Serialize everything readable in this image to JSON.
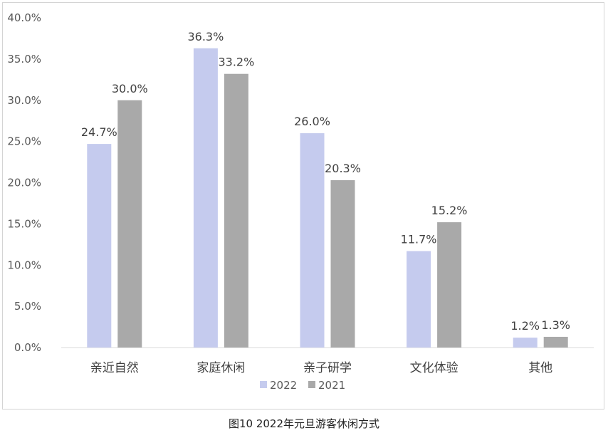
{
  "caption": "图10 2022年元旦游客休闲方式",
  "chart_data": {
    "type": "bar",
    "title": "",
    "xlabel": "",
    "ylabel": "",
    "categories": [
      "亲近自然",
      "家庭休闲",
      "亲子研学",
      "文化体验",
      "其他"
    ],
    "series": [
      {
        "name": "2022",
        "values": [
          24.7,
          36.3,
          26.0,
          11.7,
          1.2
        ],
        "labels": [
          "24.7%",
          "36.3%",
          "26.0%",
          "11.7%",
          "1.2%"
        ],
        "color": "#c5cbee"
      },
      {
        "name": "2021",
        "values": [
          30.0,
          33.2,
          20.3,
          15.2,
          1.3
        ],
        "labels": [
          "30.0%",
          "33.2%",
          "20.3%",
          "15.2%",
          "1.3%"
        ],
        "color": "#a9a9a9"
      }
    ],
    "ylim": [
      0,
      40
    ],
    "yticks": [
      "0.0%",
      "5.0%",
      "10.0%",
      "15.0%",
      "20.0%",
      "25.0%",
      "30.0%",
      "35.0%",
      "40.0%"
    ],
    "grid": false,
    "legend": "bottom-center",
    "axis_color": "#d9d9d9"
  }
}
